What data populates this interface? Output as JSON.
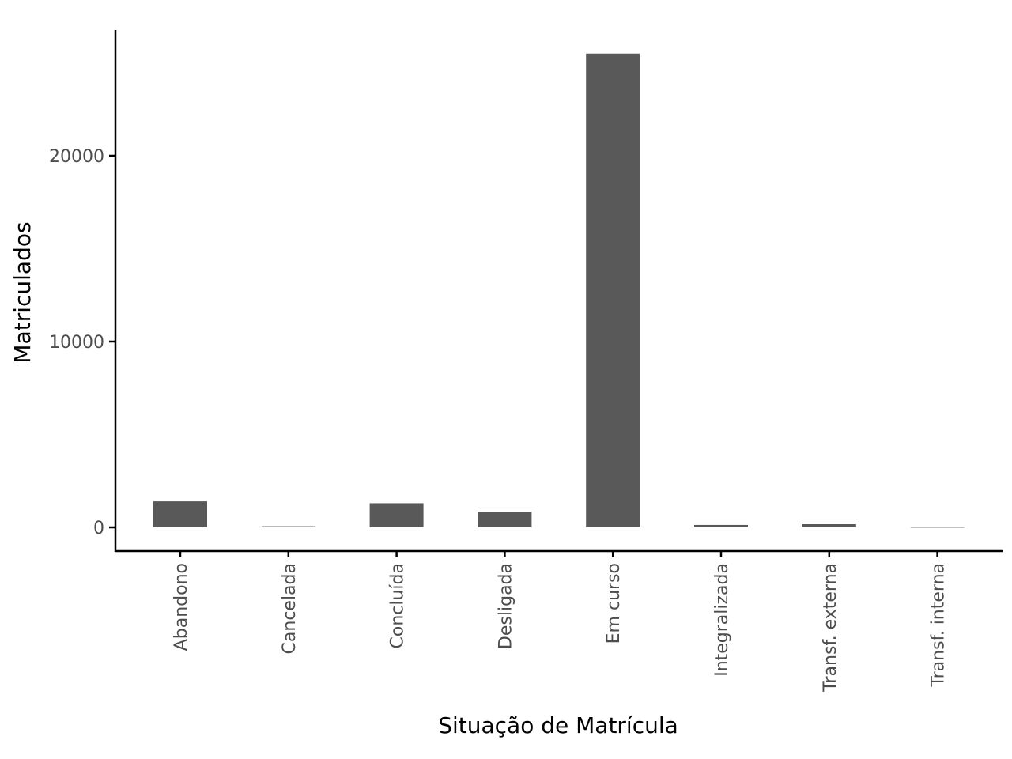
{
  "chart_data": {
    "type": "bar",
    "title": "",
    "xlabel": "Situação de Matrícula",
    "ylabel": "Matriculados",
    "categories": [
      "Abandono",
      "Cancelada",
      "Concluída",
      "Desligada",
      "Em curso",
      "Integralizada",
      "Transf. externa",
      "Transf. interna"
    ],
    "values": [
      1400,
      60,
      1300,
      850,
      25500,
      130,
      170,
      5
    ],
    "y_ticks": [
      0,
      10000,
      20000
    ],
    "y_tick_labels": [
      "0",
      "10000",
      "20000"
    ],
    "ylim": [
      -1300,
      27000
    ],
    "grid": false,
    "legend": "none",
    "bar_color": "#595959",
    "axis_color": "#000000",
    "tick_label_color": "#4d4d4d"
  }
}
